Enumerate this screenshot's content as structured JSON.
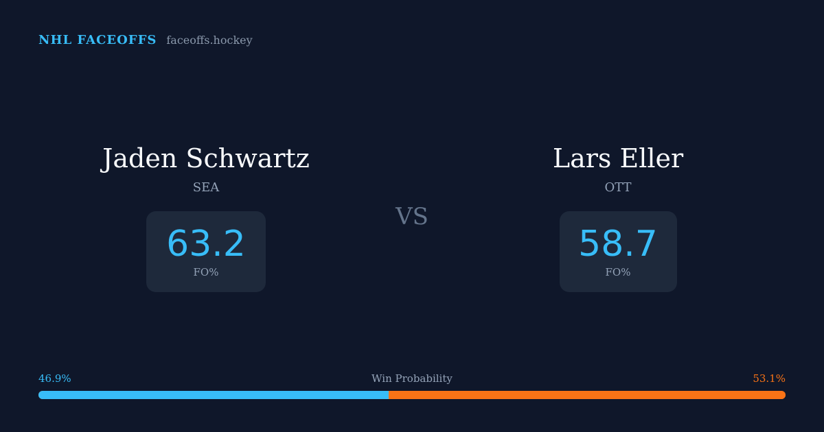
{
  "header": {
    "brand": "NHL FACEOFFS",
    "site": "faceoffs.hockey"
  },
  "players": {
    "left": {
      "name": "Jaden Schwartz",
      "team": "SEA",
      "stat_value": "63.2",
      "stat_label": "FO%"
    },
    "right": {
      "name": "Lars Eller",
      "team": "OTT",
      "stat_value": "58.7",
      "stat_label": "FO%"
    }
  },
  "vs_label": "VS",
  "win_probability": {
    "label": "Win Probability",
    "left_text": "46.9%",
    "right_text": "53.1%",
    "left_value": 46.9,
    "right_value": 53.1,
    "left_color": "#38bdf8",
    "right_color": "#f97316"
  }
}
